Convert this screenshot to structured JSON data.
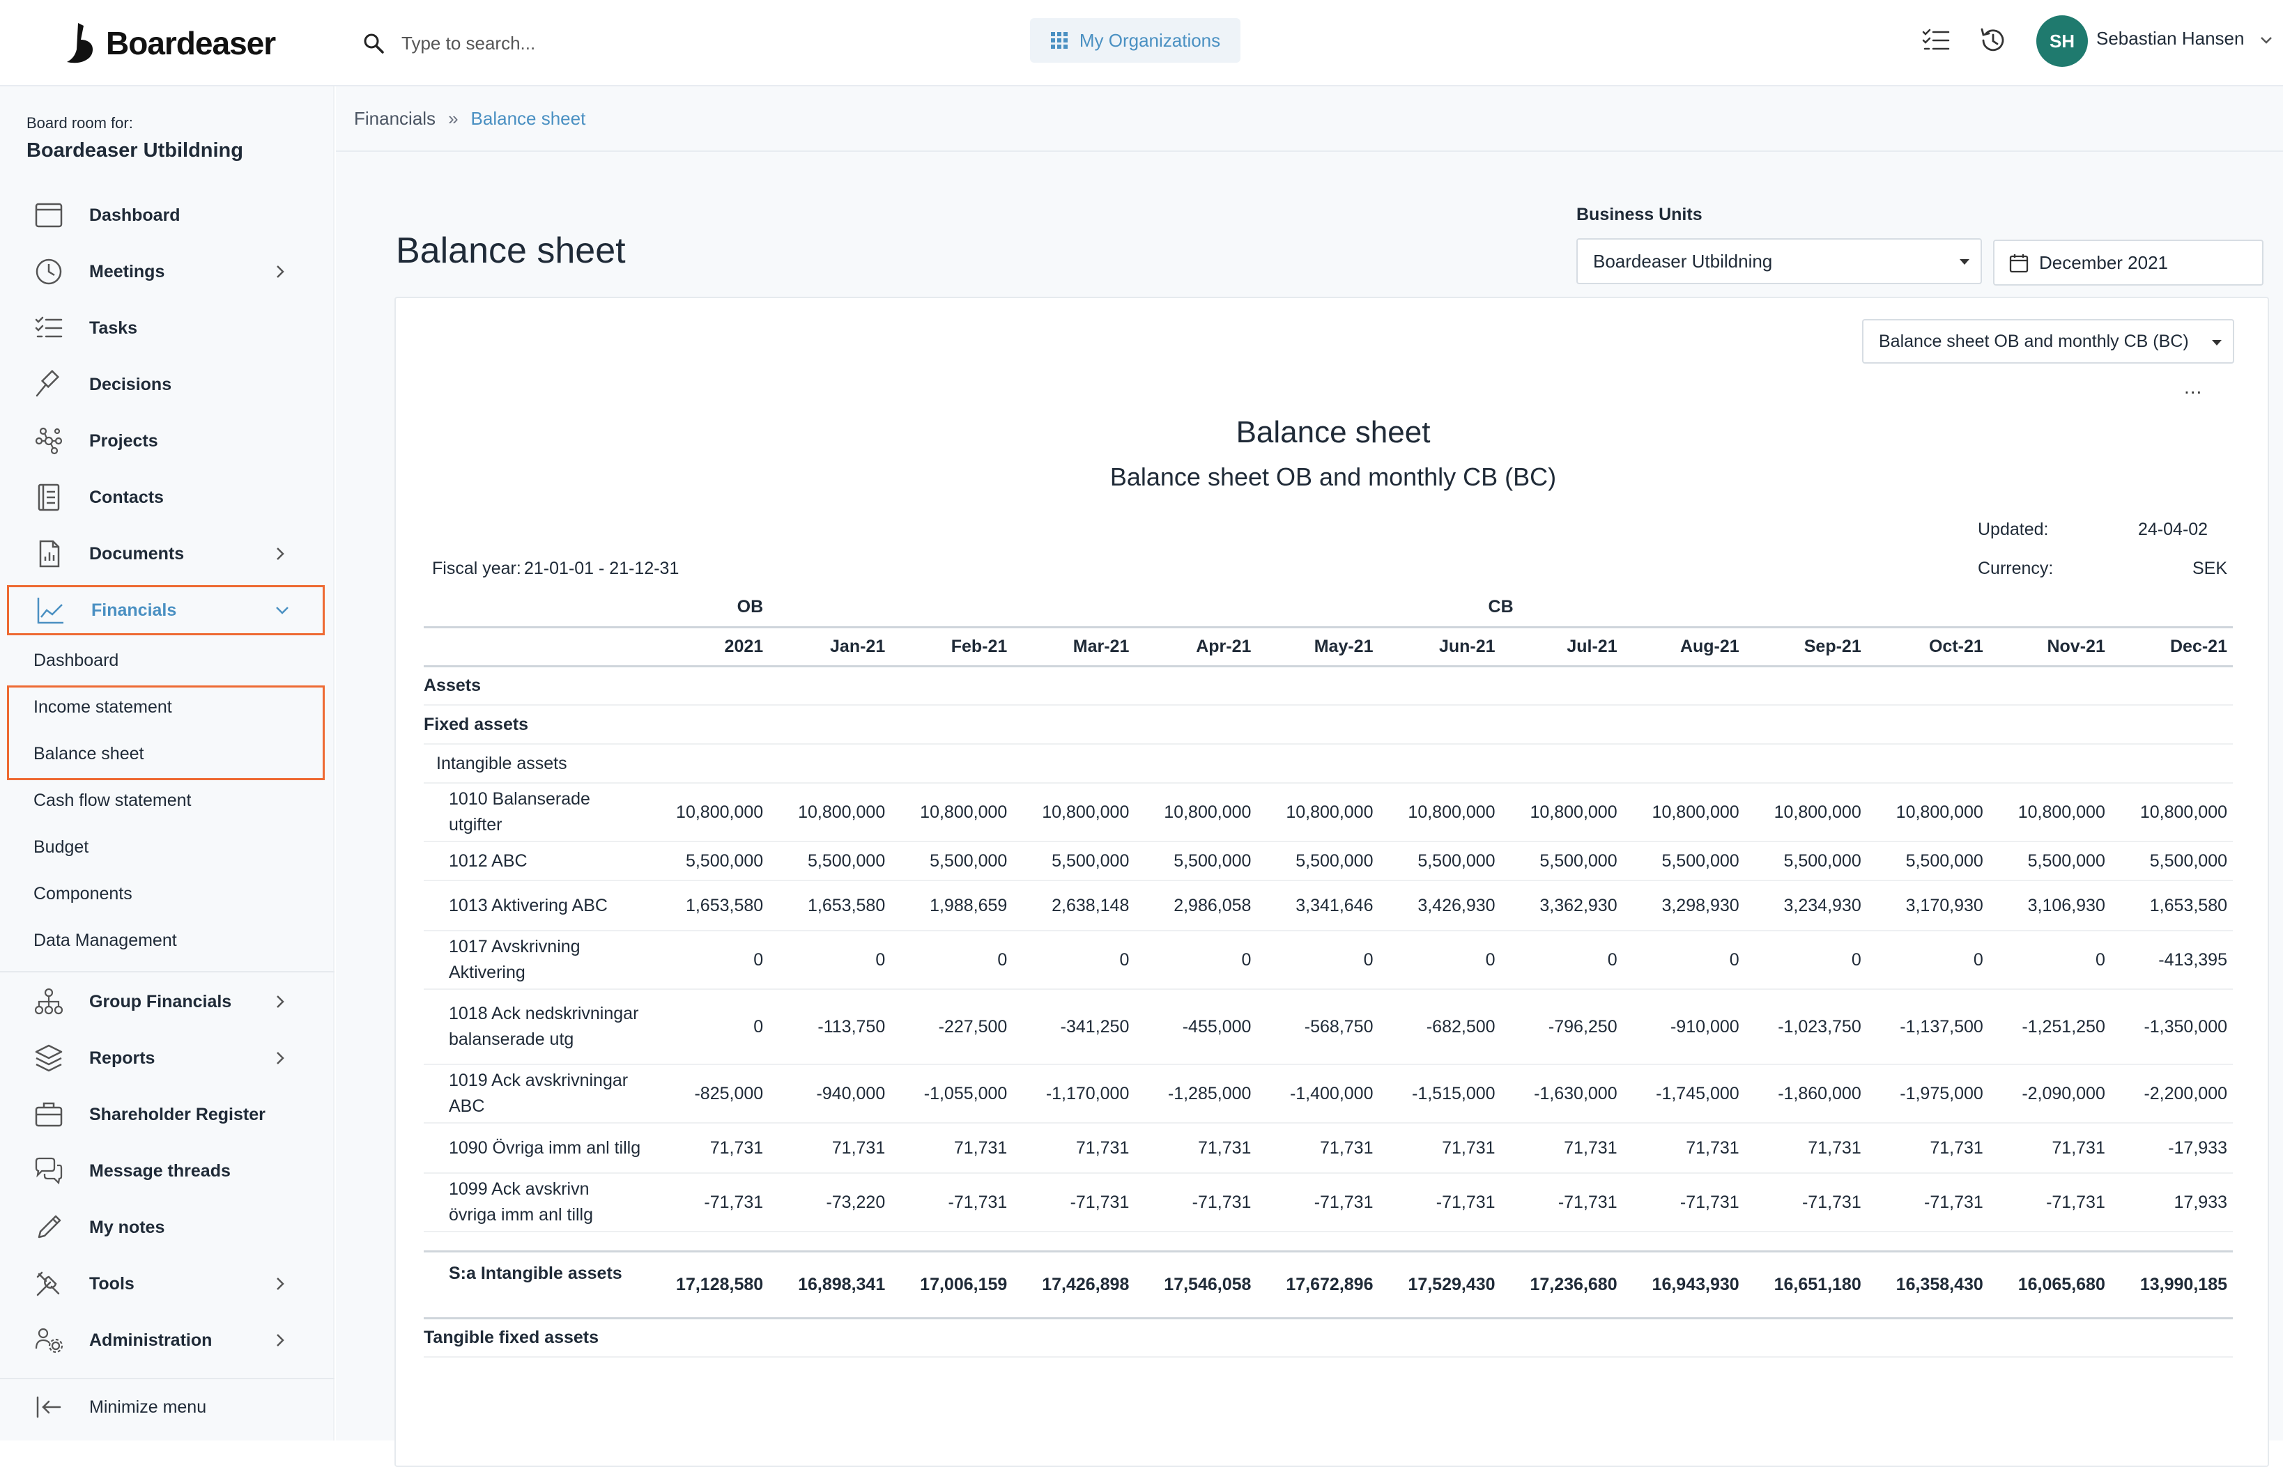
{
  "app": {
    "logo_text": "Boardeaser",
    "search_placeholder": "Type to search...",
    "org_button": "My Organizations",
    "user_initials": "SH",
    "user_name": "Sebastian Hansen"
  },
  "sidebar": {
    "board_for_label": "Board room for:",
    "board_name": "Boardeaser Utbildning",
    "items": [
      {
        "label": "Dashboard",
        "icon": "calendar-icon"
      },
      {
        "label": "Meetings",
        "icon": "clock-icon"
      },
      {
        "label": "Tasks",
        "icon": "checklist-icon"
      },
      {
        "label": "Decisions",
        "icon": "gavel-icon"
      },
      {
        "label": "Projects",
        "icon": "network-icon"
      },
      {
        "label": "Contacts",
        "icon": "address-book-icon"
      },
      {
        "label": "Documents",
        "icon": "document-icon"
      },
      {
        "label": "Financials",
        "icon": "chart-line-icon"
      },
      {
        "label": "Group Financials",
        "icon": "org-chart-icon"
      },
      {
        "label": "Reports",
        "icon": "layers-icon"
      },
      {
        "label": "Shareholder Register",
        "icon": "briefcase-icon"
      },
      {
        "label": "Message threads",
        "icon": "chat-icon"
      },
      {
        "label": "My notes",
        "icon": "pencil-icon"
      },
      {
        "label": "Tools",
        "icon": "tools-icon"
      },
      {
        "label": "Administration",
        "icon": "users-gear-icon"
      }
    ],
    "financials_sub": [
      "Dashboard",
      "Income statement",
      "Balance sheet",
      "Cash flow statement",
      "Budget",
      "Components",
      "Data Management"
    ],
    "minimize": "Minimize menu"
  },
  "breadcrumb": {
    "parent": "Financials",
    "separator": "»",
    "current": "Balance sheet"
  },
  "page": {
    "title": "Balance sheet",
    "business_units_label": "Business Units",
    "business_unit_value": "Boardeaser Utbildning",
    "date_value": "December 2021",
    "report_type": "Balance sheet OB and monthly CB (BC)",
    "more": "..."
  },
  "report": {
    "title": "Balance sheet",
    "subtitle": "Balance sheet OB and monthly CB (BC)",
    "updated_label": "Updated:",
    "updated_value": "24-04-02",
    "fiscal_label": "Fiscal year:",
    "fiscal_value": "21-01-01 - 21-12-31",
    "currency_label": "Currency:",
    "currency_value": "SEK",
    "group_ob": "OB",
    "group_cb": "CB",
    "columns": [
      "2021",
      "Jan-21",
      "Feb-21",
      "Mar-21",
      "Apr-21",
      "May-21",
      "Jun-21",
      "Jul-21",
      "Aug-21",
      "Sep-21",
      "Oct-21",
      "Nov-21",
      "Dec-21"
    ],
    "sections": {
      "assets": "Assets",
      "fixed_assets": "Fixed assets",
      "intangible_assets": "Intangible assets",
      "tangible_fixed_assets": "Tangible fixed assets"
    },
    "rows": [
      {
        "label": "1010 Balanserade utgifter",
        "values": [
          "10,800,000",
          "10,800,000",
          "10,800,000",
          "10,800,000",
          "10,800,000",
          "10,800,000",
          "10,800,000",
          "10,800,000",
          "10,800,000",
          "10,800,000",
          "10,800,000",
          "10,800,000",
          "10,800,000"
        ]
      },
      {
        "label": "1012 ABC",
        "values": [
          "5,500,000",
          "5,500,000",
          "5,500,000",
          "5,500,000",
          "5,500,000",
          "5,500,000",
          "5,500,000",
          "5,500,000",
          "5,500,000",
          "5,500,000",
          "5,500,000",
          "5,500,000",
          "5,500,000"
        ]
      },
      {
        "label": "1013 Aktivering ABC",
        "values": [
          "1,653,580",
          "1,653,580",
          "1,988,659",
          "2,638,148",
          "2,986,058",
          "3,341,646",
          "3,426,930",
          "3,362,930",
          "3,298,930",
          "3,234,930",
          "3,170,930",
          "3,106,930",
          "1,653,580"
        ]
      },
      {
        "label": "1017 Avskrivning Aktivering",
        "values": [
          "0",
          "0",
          "0",
          "0",
          "0",
          "0",
          "0",
          "0",
          "0",
          "0",
          "0",
          "0",
          "-413,395"
        ]
      },
      {
        "label": "1018 Ack nedskrivningar balanserade utg",
        "values": [
          "0",
          "-113,750",
          "-227,500",
          "-341,250",
          "-455,000",
          "-568,750",
          "-682,500",
          "-796,250",
          "-910,000",
          "-1,023,750",
          "-1,137,500",
          "-1,251,250",
          "-1,350,000"
        ]
      },
      {
        "label": "1019 Ack avskrivningar ABC",
        "values": [
          "-825,000",
          "-940,000",
          "-1,055,000",
          "-1,170,000",
          "-1,285,000",
          "-1,400,000",
          "-1,515,000",
          "-1,630,000",
          "-1,745,000",
          "-1,860,000",
          "-1,975,000",
          "-2,090,000",
          "-2,200,000"
        ]
      },
      {
        "label": "1090 Övriga imm anl tillg",
        "values": [
          "71,731",
          "71,731",
          "71,731",
          "71,731",
          "71,731",
          "71,731",
          "71,731",
          "71,731",
          "71,731",
          "71,731",
          "71,731",
          "71,731",
          "-17,933"
        ]
      },
      {
        "label": "1099 Ack avskrivn övriga imm anl tillg",
        "values": [
          "-71,731",
          "-73,220",
          "-71,731",
          "-71,731",
          "-71,731",
          "-71,731",
          "-71,731",
          "-71,731",
          "-71,731",
          "-71,731",
          "-71,731",
          "-71,731",
          "17,933"
        ]
      }
    ],
    "total": {
      "label": "S:a Intangible assets",
      "values": [
        "17,128,580",
        "16,898,341",
        "17,006,159",
        "17,426,898",
        "17,546,058",
        "17,672,896",
        "17,529,430",
        "17,236,680",
        "16,943,930",
        "16,651,180",
        "16,358,430",
        "16,065,680",
        "13,990,185"
      ]
    }
  },
  "colors": {
    "accent": "#4a90c2",
    "highlight": "#ee6a33",
    "avatar": "#1f7a6e"
  }
}
